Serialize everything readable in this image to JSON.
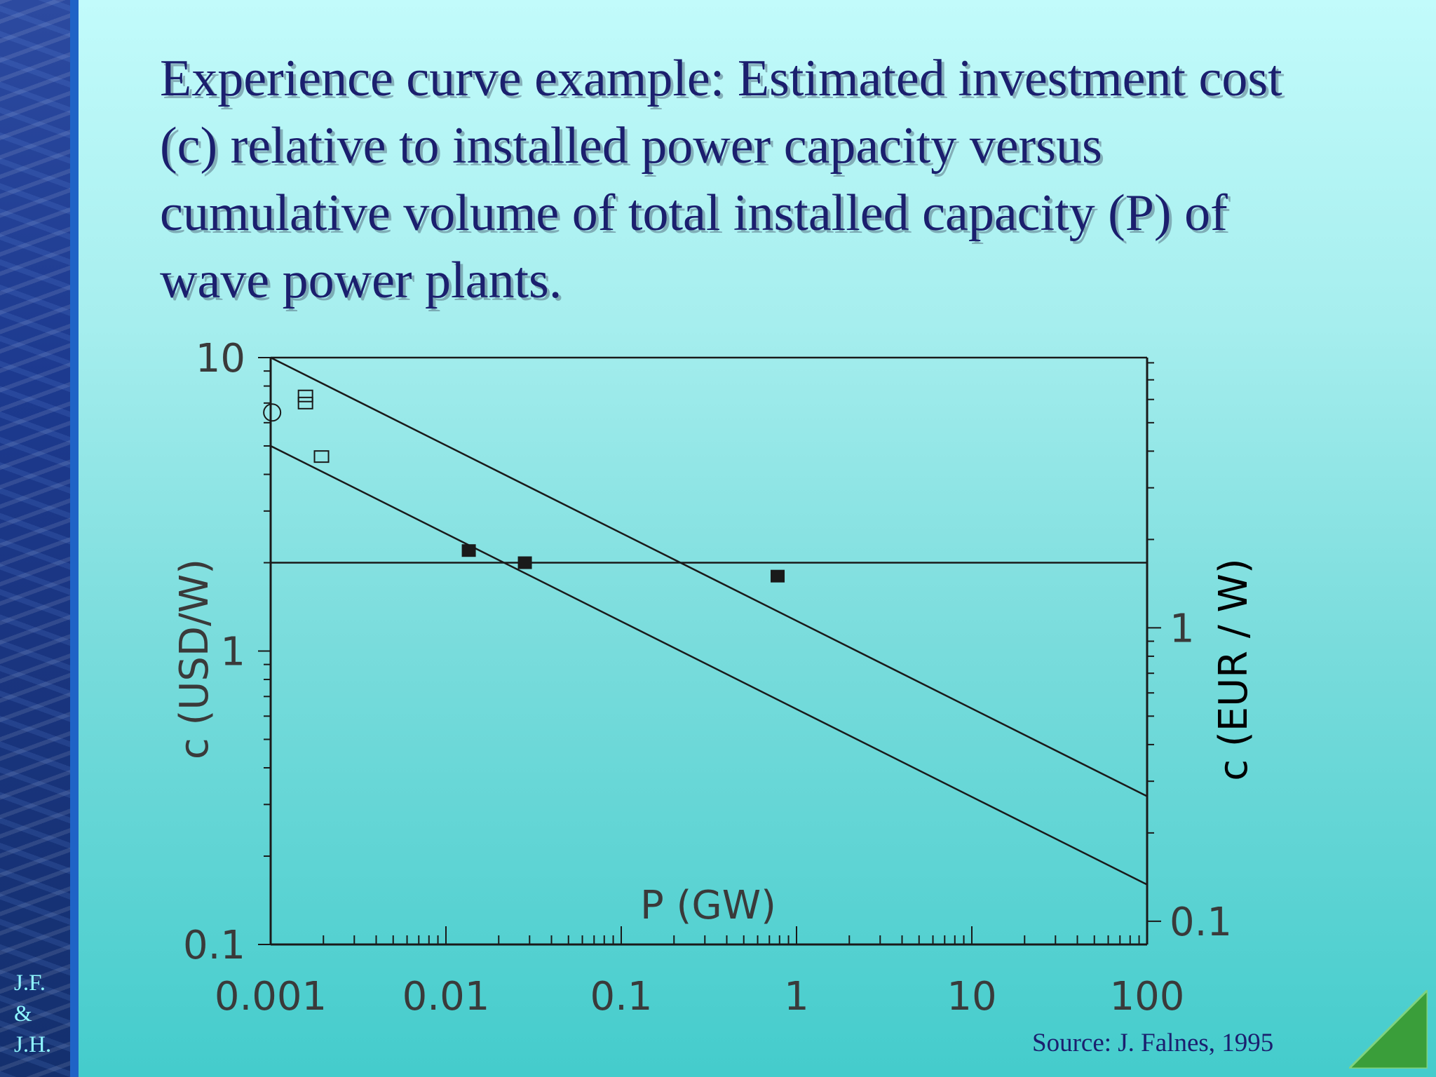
{
  "slide": {
    "title": "Experience curve example:  Estimated investment cost (c) relative to installed power capacity versus cumulative volume of total installed capacity (P) of wave power plants.",
    "source": "Source: J. Falnes, 1995",
    "initials": [
      "J.F.",
      "&",
      "J.H."
    ]
  },
  "chart_data": {
    "type": "scatter",
    "xlabel": "P (GW)",
    "ylabel": "c (USD/W)",
    "y2label": "c (EUR / W)",
    "x_scale": "log",
    "y_scale": "log",
    "xlim": [
      0.001,
      100
    ],
    "ylim": [
      0.1,
      10
    ],
    "x_ticks": [
      "0.001",
      "0.01",
      "0.1",
      "1",
      "10",
      "100"
    ],
    "y_ticks": [
      "10",
      "1",
      "0.1"
    ],
    "y2_ticks": [
      "1",
      "0.1"
    ],
    "y2_tick_values": [
      1.2,
      0.12
    ],
    "grid": false,
    "lines": [
      {
        "x": [
          0.001,
          100
        ],
        "y": [
          10,
          0.32
        ]
      },
      {
        "x": [
          0.001,
          100
        ],
        "y": [
          5,
          0.16
        ]
      },
      {
        "x": [
          0.001,
          100
        ],
        "y": [
          2,
          2
        ]
      }
    ],
    "points": [
      {
        "x": 0.00102,
        "y": 6.5,
        "marker": "open-circle"
      },
      {
        "x": 0.00158,
        "y": 7.4,
        "marker": "open-square"
      },
      {
        "x": 0.00158,
        "y": 7.0,
        "marker": "open-square"
      },
      {
        "x": 0.00195,
        "y": 4.6,
        "marker": "open-square"
      },
      {
        "x": 0.0135,
        "y": 2.2,
        "marker": "filled-square"
      },
      {
        "x": 0.0282,
        "y": 2.0,
        "marker": "filled-square"
      },
      {
        "x": 0.78,
        "y": 1.8,
        "marker": "filled-square"
      }
    ]
  }
}
